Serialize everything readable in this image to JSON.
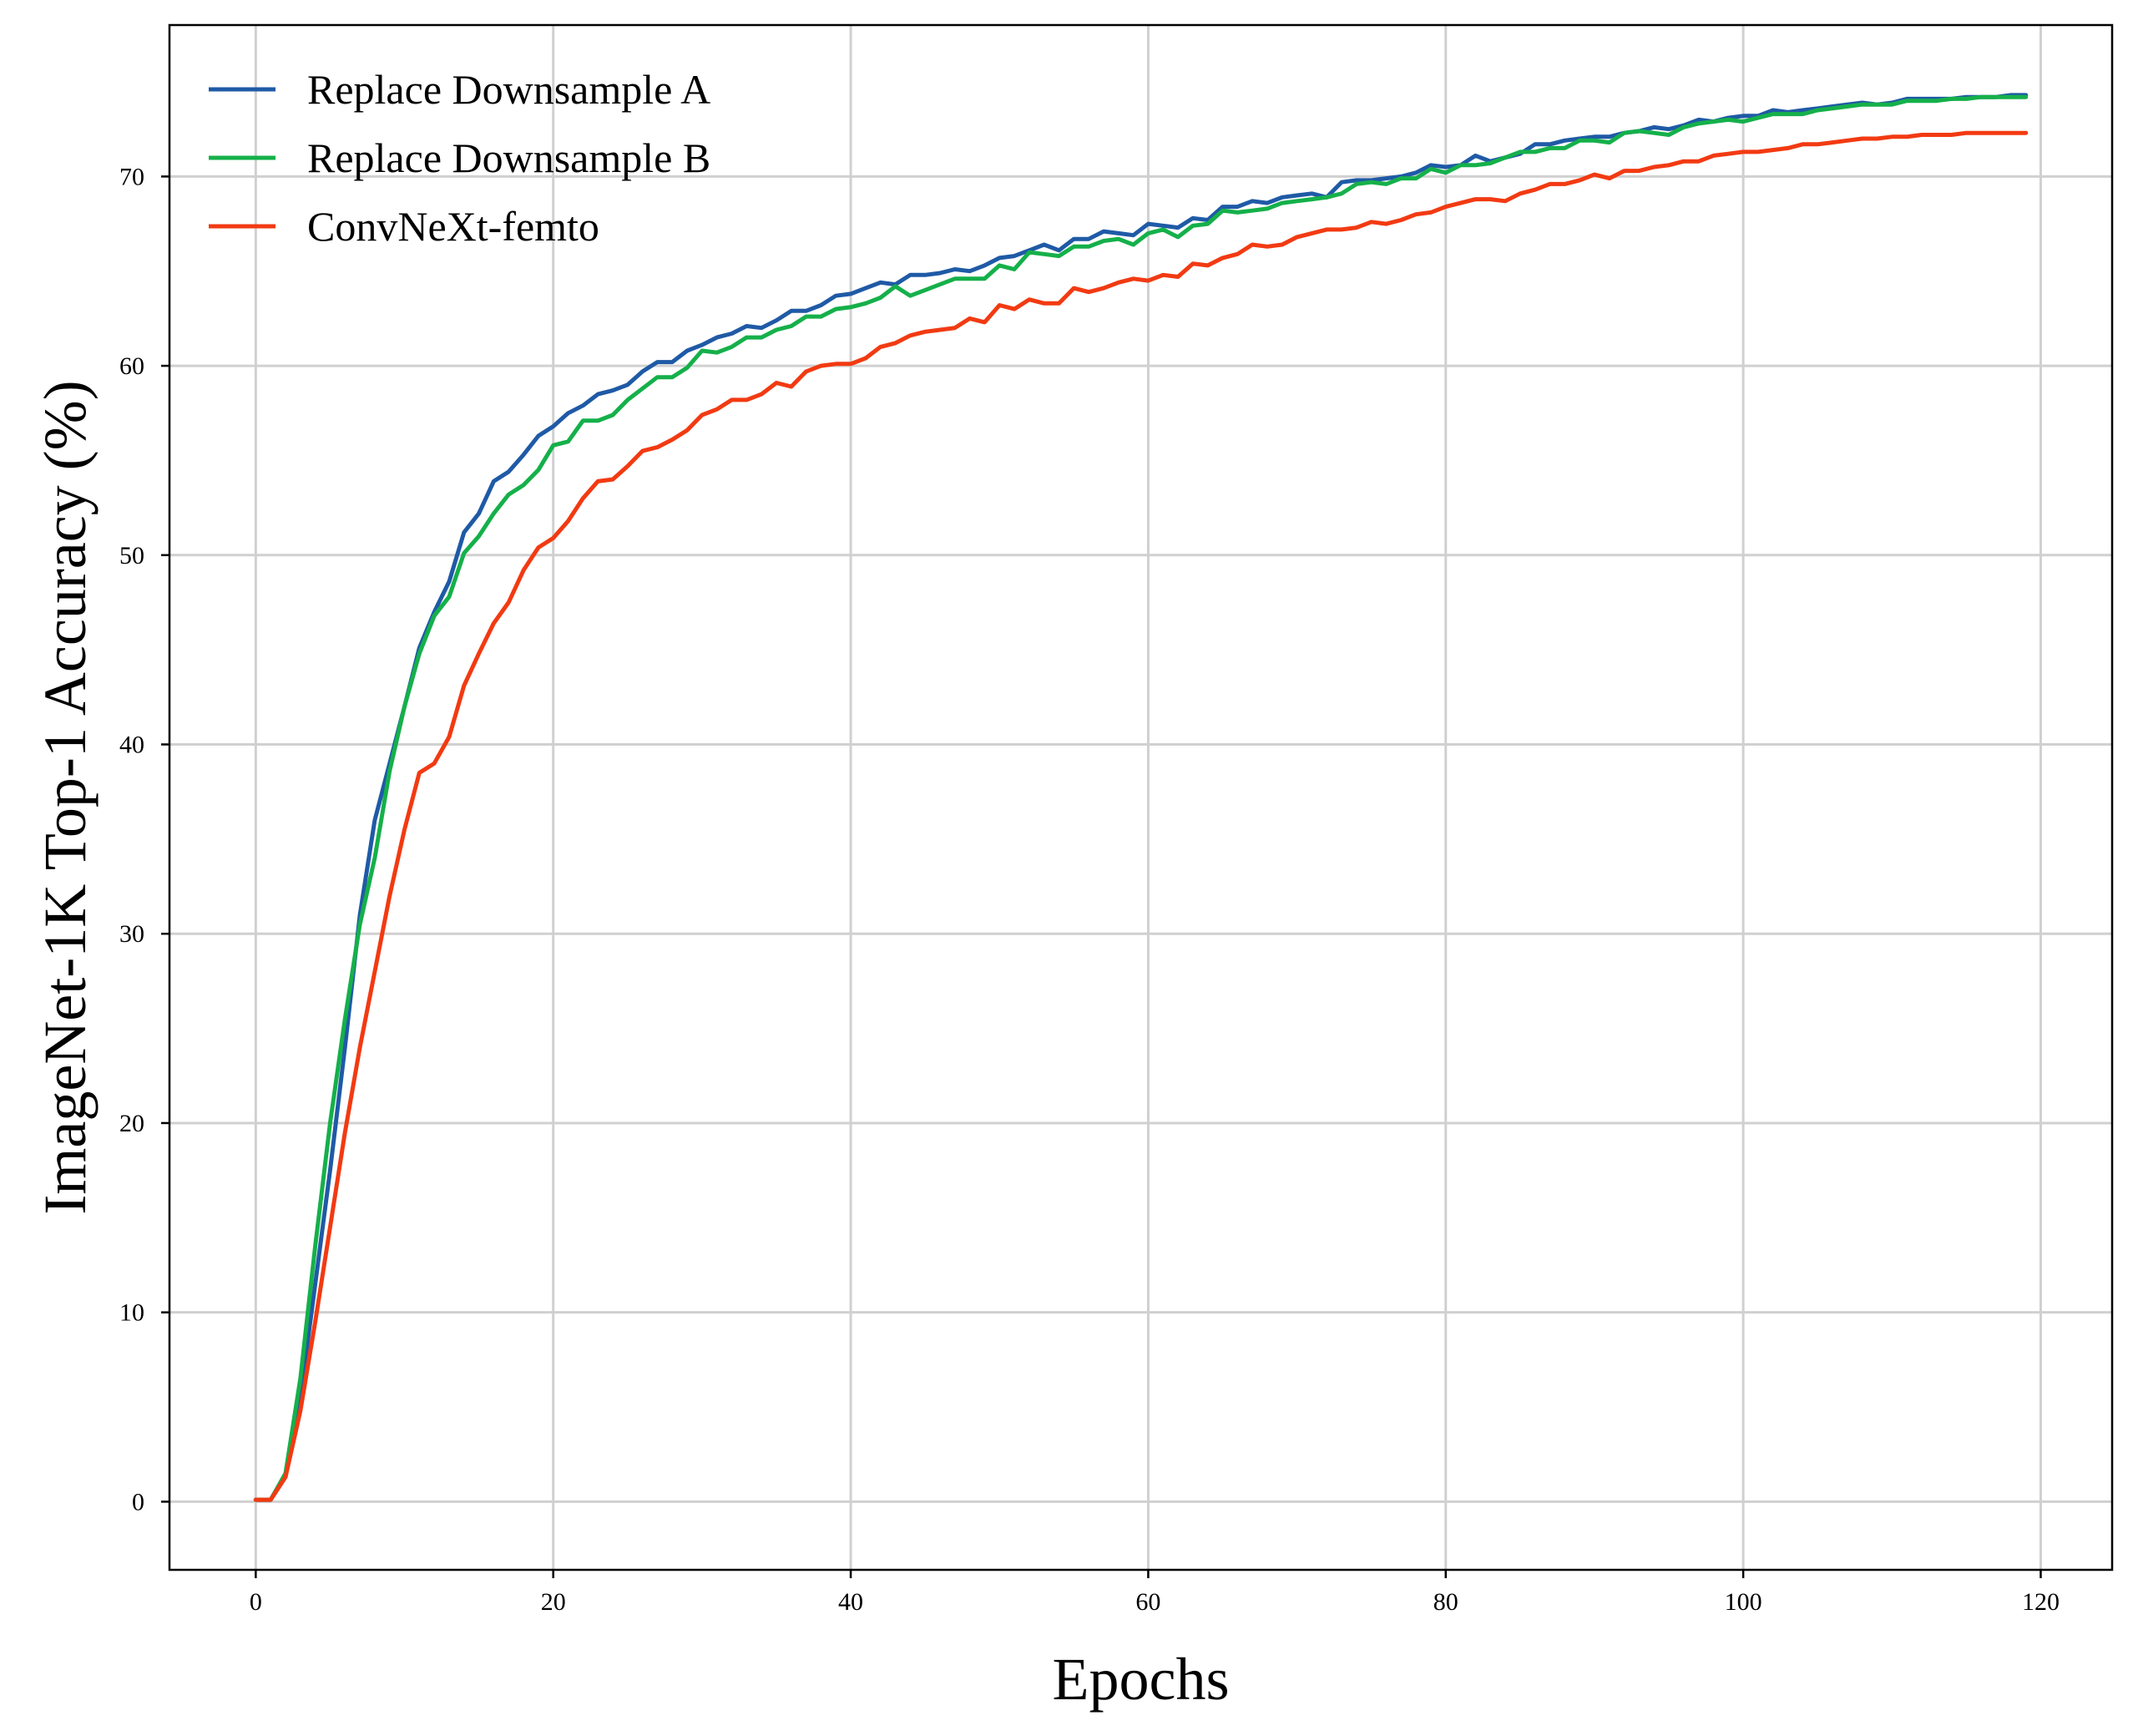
{
  "chart_data": {
    "type": "line",
    "title": "",
    "xlabel": "Epochs",
    "ylabel": "ImageNet-1K Top-1 Accuracy (%)",
    "xlim": [
      -5.8,
      124.8
    ],
    "ylim": [
      -3.6,
      78.0
    ],
    "xticks": [
      0,
      20,
      40,
      60,
      80,
      100,
      120
    ],
    "yticks": [
      0,
      10,
      20,
      30,
      40,
      50,
      60,
      70
    ],
    "grid": true,
    "legend_position": "upper-left",
    "x": [
      0,
      1,
      2,
      3,
      4,
      5,
      6,
      7,
      8,
      9,
      10,
      11,
      12,
      13,
      14,
      15,
      16,
      17,
      18,
      19,
      20,
      21,
      22,
      23,
      24,
      25,
      26,
      27,
      28,
      29,
      30,
      31,
      32,
      33,
      34,
      35,
      36,
      37,
      38,
      39,
      40,
      41,
      42,
      43,
      44,
      45,
      46,
      47,
      48,
      49,
      50,
      51,
      52,
      53,
      54,
      55,
      56,
      57,
      58,
      59,
      60,
      61,
      62,
      63,
      64,
      65,
      66,
      67,
      68,
      69,
      70,
      71,
      72,
      73,
      74,
      75,
      76,
      77,
      78,
      79,
      80,
      81,
      82,
      83,
      84,
      85,
      86,
      87,
      88,
      89,
      90,
      91,
      92,
      93,
      94,
      95,
      96,
      97,
      98,
      99,
      100,
      101,
      102,
      103,
      104,
      105,
      106,
      107,
      108,
      109,
      110,
      111,
      112,
      113,
      114,
      115,
      116,
      117,
      118,
      119
    ],
    "series": [
      {
        "name": "Replace Downsample A",
        "color": "#1f5aa6",
        "values": [
          0.1,
          0.1,
          1.4,
          5.5,
          11.5,
          17.5,
          24,
          31,
          36,
          39,
          42,
          45.1,
          47,
          48.6,
          51.2,
          52.2,
          53.9,
          54.4,
          55.3,
          56.3,
          56.8,
          57.5,
          57.9,
          58.5,
          58.7,
          59.0,
          59.7,
          60.2,
          60.2,
          60.8,
          61.1,
          61.5,
          61.7,
          62.1,
          62.0,
          62.4,
          62.9,
          62.9,
          63.2,
          63.7,
          63.8,
          64.1,
          64.4,
          64.3,
          64.8,
          64.8,
          64.9,
          65.1,
          65.0,
          65.3,
          65.7,
          65.8,
          66.1,
          66.4,
          66.1,
          66.7,
          66.7,
          67.1,
          67.0,
          66.9,
          67.5,
          67.4,
          67.3,
          67.8,
          67.7,
          68.4,
          68.4,
          68.7,
          68.6,
          68.9,
          69.0,
          69.1,
          68.9,
          69.7,
          69.8,
          69.8,
          69.9,
          70.0,
          70.2,
          70.6,
          70.5,
          70.6,
          71.1,
          70.8,
          71.0,
          71.2,
          71.7,
          71.7,
          71.9,
          72.0,
          72.1,
          72.1,
          72.3,
          72.4,
          72.6,
          72.5,
          72.7,
          73.0,
          72.9,
          73.1,
          73.2,
          73.2,
          73.5,
          73.4,
          73.5,
          73.6,
          73.7,
          73.8,
          73.9,
          73.8,
          73.9,
          74.1,
          74.1,
          74.1,
          74.1,
          74.2,
          74.2,
          74.2,
          74.3,
          74.3
        ]
      },
      {
        "name": "Replace Downsample B",
        "color": "#15b04a",
        "values": [
          0.1,
          0.1,
          1.5,
          6.5,
          13.5,
          20,
          25.5,
          30.5,
          34,
          38.6,
          42,
          44.8,
          46.8,
          47.8,
          50.1,
          51.0,
          52.2,
          53.2,
          53.7,
          54.5,
          55.8,
          56.0,
          57.1,
          57.1,
          57.4,
          58.2,
          58.8,
          59.4,
          59.4,
          59.9,
          60.8,
          60.7,
          61.0,
          61.5,
          61.5,
          61.9,
          62.1,
          62.6,
          62.6,
          63.0,
          63.1,
          63.3,
          63.6,
          64.2,
          63.7,
          64.0,
          64.3,
          64.6,
          64.6,
          64.6,
          65.3,
          65.1,
          66.0,
          65.9,
          65.8,
          66.3,
          66.3,
          66.6,
          66.7,
          66.4,
          67.0,
          67.2,
          66.8,
          67.4,
          67.5,
          68.2,
          68.1,
          68.2,
          68.3,
          68.6,
          68.7,
          68.8,
          68.9,
          69.1,
          69.6,
          69.7,
          69.6,
          69.9,
          69.9,
          70.4,
          70.2,
          70.6,
          70.6,
          70.7,
          71.0,
          71.3,
          71.3,
          71.5,
          71.5,
          71.9,
          71.9,
          71.8,
          72.3,
          72.4,
          72.3,
          72.2,
          72.6,
          72.8,
          72.9,
          73.0,
          72.9,
          73.1,
          73.3,
          73.3,
          73.3,
          73.5,
          73.6,
          73.7,
          73.8,
          73.8,
          73.8,
          74.0,
          74.0,
          74.0,
          74.1,
          74.1,
          74.2,
          74.2,
          74.2,
          74.2
        ]
      },
      {
        "name": "ConvNeXt-femto",
        "color": "#f23a12",
        "values": [
          0.1,
          0.1,
          1.3,
          4.8,
          9.5,
          14.5,
          19.5,
          24,
          28,
          32,
          35.5,
          38.5,
          39,
          40.4,
          43.1,
          44.8,
          46.4,
          47.5,
          49.2,
          50.4,
          50.9,
          51.8,
          53.0,
          53.9,
          54.0,
          54.7,
          55.5,
          55.7,
          56.1,
          56.6,
          57.4,
          57.7,
          58.2,
          58.2,
          58.5,
          59.1,
          58.9,
          59.7,
          60.0,
          60.1,
          60.1,
          60.4,
          61.0,
          61.2,
          61.6,
          61.8,
          61.9,
          62.0,
          62.5,
          62.3,
          63.2,
          63.0,
          63.5,
          63.3,
          63.3,
          64.1,
          63.9,
          64.1,
          64.4,
          64.6,
          64.5,
          64.8,
          64.7,
          65.4,
          65.3,
          65.7,
          65.9,
          66.4,
          66.3,
          66.4,
          66.8,
          67.0,
          67.2,
          67.2,
          67.3,
          67.6,
          67.5,
          67.7,
          68.0,
          68.1,
          68.4,
          68.6,
          68.8,
          68.8,
          68.7,
          69.1,
          69.3,
          69.6,
          69.6,
          69.8,
          70.1,
          69.9,
          70.3,
          70.3,
          70.5,
          70.6,
          70.8,
          70.8,
          71.1,
          71.2,
          71.3,
          71.3,
          71.4,
          71.5,
          71.7,
          71.7,
          71.8,
          71.9,
          72.0,
          72.0,
          72.1,
          72.1,
          72.2,
          72.2,
          72.2,
          72.3,
          72.3,
          72.3,
          72.3,
          72.3
        ]
      }
    ]
  }
}
